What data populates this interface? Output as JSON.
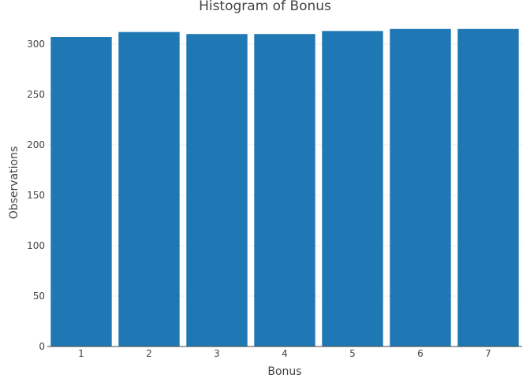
{
  "chart_data": {
    "type": "bar",
    "title": "Histogram of Bonus",
    "xlabel": "Bonus",
    "ylabel": "Observations",
    "categories": [
      "1",
      "2",
      "3",
      "4",
      "5",
      "6",
      "7"
    ],
    "values": [
      307,
      312,
      310,
      310,
      313,
      315,
      315
    ],
    "ylim": [
      0,
      325
    ],
    "yticks": [
      0,
      50,
      100,
      150,
      200,
      250,
      300
    ],
    "grid": true,
    "legend": "none",
    "bar_color": "#1f77b4"
  }
}
